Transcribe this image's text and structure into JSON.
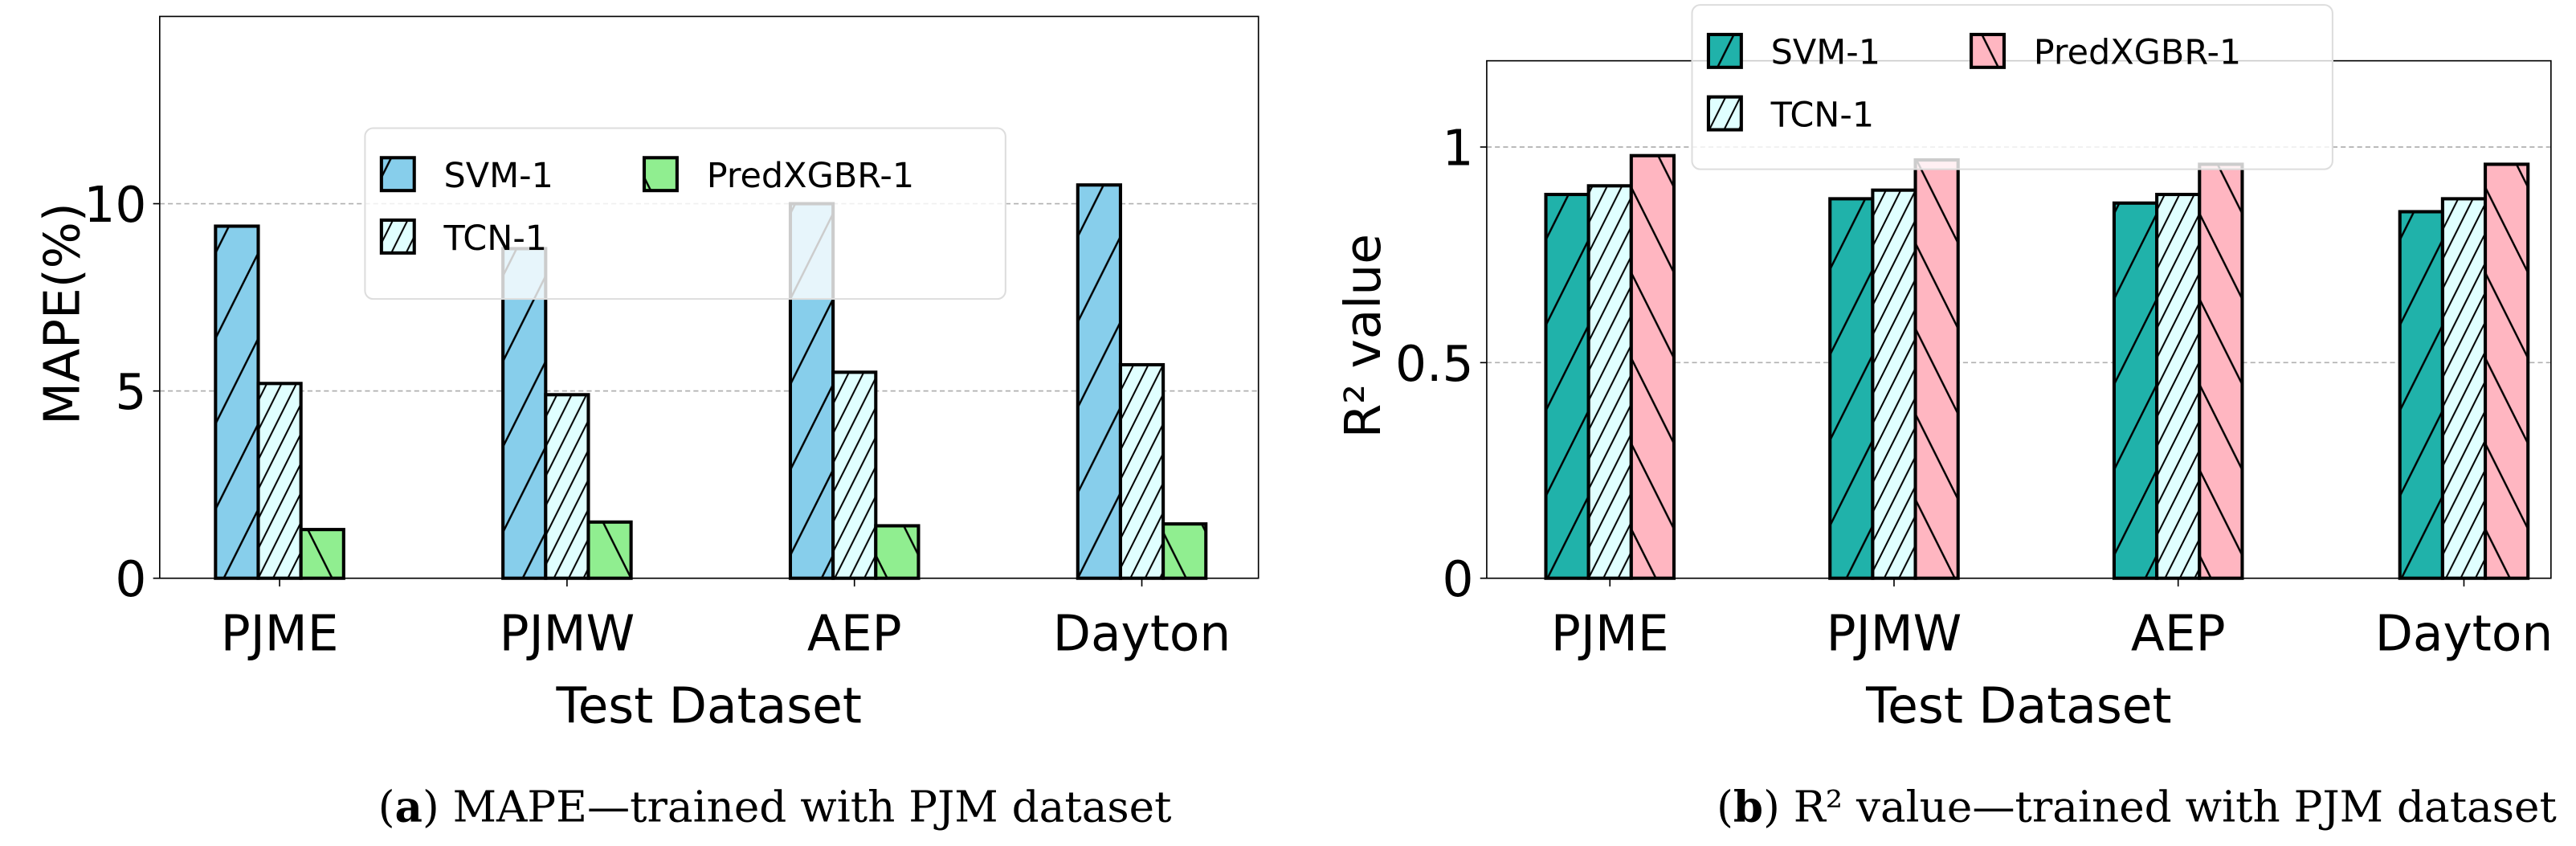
{
  "chart_data": [
    {
      "type": "bar",
      "title": "",
      "xlabel": "Test Dataset",
      "ylabel": "MAPE(%)",
      "ylim": [
        0,
        15
      ],
      "yticks": [
        "0",
        "5",
        "10"
      ],
      "ytick_values": [
        0,
        5,
        10
      ],
      "grid": "horizontal dashed",
      "legend_placement": "top-center",
      "categories": [
        "PJME",
        "PJMW",
        "AEP",
        "Dayton"
      ],
      "series": [
        {
          "name": "SVM-1",
          "values": [
            9.4,
            8.8,
            10.0,
            10.5
          ],
          "color": "#87ceeb",
          "hatch": "/"
        },
        {
          "name": "TCN-1",
          "values": [
            5.2,
            4.9,
            5.5,
            5.7
          ],
          "color": "#e0ffff",
          "hatch": "///"
        },
        {
          "name": "PredXGBR-1",
          "values": [
            1.3,
            1.5,
            1.4,
            1.45
          ],
          "color": "#90ee90",
          "hatch": "\\"
        }
      ],
      "caption": {
        "label": "a",
        "text": " MAPE—trained with PJM dataset"
      }
    },
    {
      "type": "bar",
      "title": "",
      "xlabel": "Test Dataset",
      "ylabel": "R² value",
      "ylim": [
        0,
        1.2
      ],
      "yticks": [
        "0",
        "0.5",
        "1"
      ],
      "ytick_values": [
        0,
        0.5,
        1
      ],
      "grid": "horizontal dashed",
      "legend_placement": "top-center",
      "categories": [
        "PJME",
        "PJMW",
        "AEP",
        "Dayton"
      ],
      "series": [
        {
          "name": "SVM-1",
          "values": [
            0.89,
            0.88,
            0.87,
            0.85
          ],
          "color": "#20b2aa",
          "hatch": "/"
        },
        {
          "name": "TCN-1",
          "values": [
            0.91,
            0.9,
            0.89,
            0.88
          ],
          "color": "#e0ffff",
          "hatch": "///"
        },
        {
          "name": "PredXGBR-1",
          "values": [
            0.98,
            0.97,
            0.96,
            0.96
          ],
          "color": "#ffb6c1",
          "hatch": "\\"
        }
      ],
      "caption": {
        "label": "b",
        "text": " R² value—trained with PJM dataset"
      }
    }
  ]
}
